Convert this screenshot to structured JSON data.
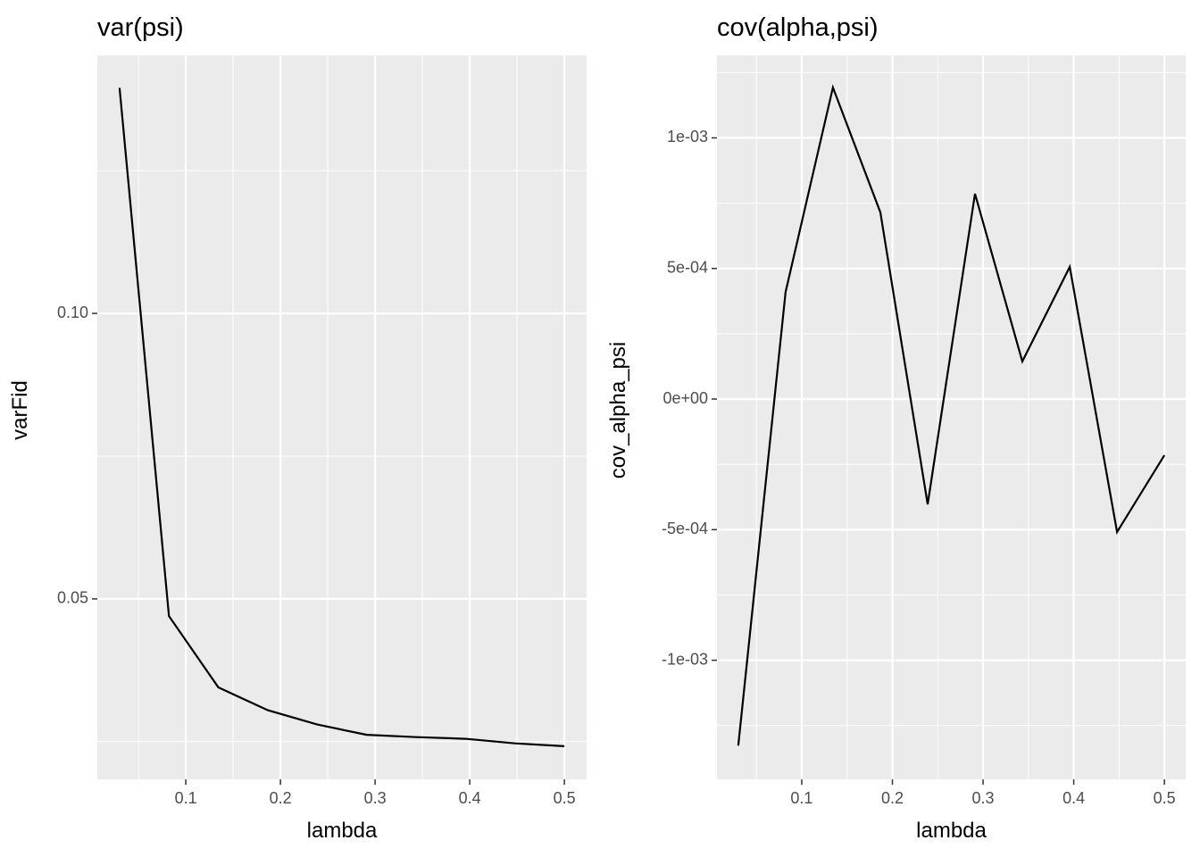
{
  "chart_data": [
    {
      "type": "line",
      "title": "var(psi)",
      "x_label": "lambda",
      "y_label": "varFid",
      "x": [
        0.03,
        0.0822,
        0.1344,
        0.1867,
        0.2389,
        0.2911,
        0.3433,
        0.3956,
        0.4478,
        0.5
      ],
      "series": [
        {
          "name": "varFid",
          "color": "#000000",
          "values": [
            0.1395,
            0.047,
            0.0345,
            0.0305,
            0.028,
            0.0262,
            0.0258,
            0.0255,
            0.0247,
            0.0242
          ]
        }
      ],
      "xlim": [
        0.0065,
        0.5235
      ],
      "xticks": [
        0.1,
        0.2,
        0.3,
        0.4,
        0.5
      ],
      "ylim": [
        0.0184,
        0.1452
      ],
      "yticks": [
        {
          "value": 0.05,
          "label": "0.05"
        },
        {
          "value": 0.1,
          "label": "0.10"
        }
      ],
      "grid": true
    },
    {
      "type": "line",
      "title": "cov(alpha,psi)",
      "x_label": "lambda",
      "y_label": "cov_alpha_psi",
      "x": [
        0.03,
        0.0822,
        0.1344,
        0.1867,
        0.2389,
        0.2911,
        0.3433,
        0.3956,
        0.4478,
        0.5
      ],
      "series": [
        {
          "name": "cov_alpha_psi",
          "color": "#000000",
          "values": [
            -0.001327,
            0.00041,
            0.001193,
            0.000715,
            -0.000403,
            0.000786,
            0.000144,
            0.000506,
            -0.000509,
            -0.000215
          ]
        }
      ],
      "xlim": [
        0.0065,
        0.5235
      ],
      "xticks": [
        0.1,
        0.2,
        0.3,
        0.4,
        0.5
      ],
      "ylim": [
        -0.001456,
        0.001316
      ],
      "yticks": [
        {
          "value": -0.001,
          "label": "-1e-03"
        },
        {
          "value": -0.0005,
          "label": "-5e-04"
        },
        {
          "value": 0,
          "label": "0e+00"
        },
        {
          "value": 0.0005,
          "label": "5e-04"
        },
        {
          "value": 0.001,
          "label": "1e-03"
        }
      ],
      "grid": true
    }
  ]
}
